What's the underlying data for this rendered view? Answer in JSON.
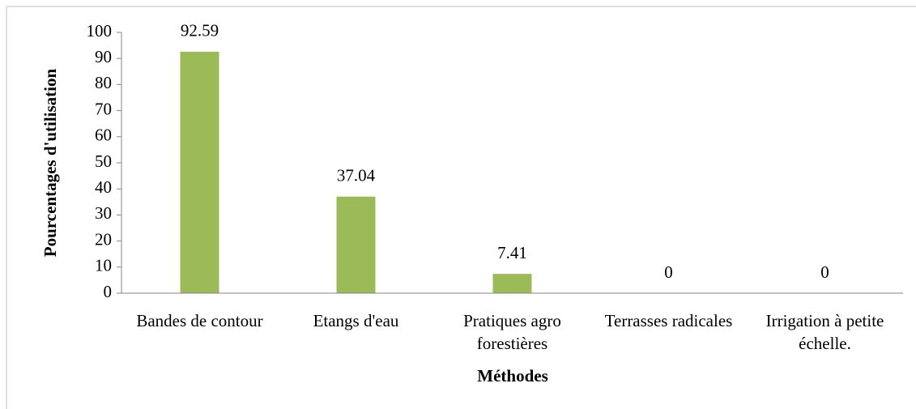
{
  "chart_data": {
    "type": "bar",
    "categories": [
      "Bandes de contour",
      "Etangs d'eau",
      "Pratiques agro forestières",
      "Terrasses radicales",
      "Irrigation à petite échelle."
    ],
    "values": [
      92.59,
      37.04,
      7.41,
      0,
      0
    ],
    "color": "#9bbb59",
    "xlabel": "Méthodes",
    "ylabel": "Pourcentages d'utilisation",
    "ylim": [
      0,
      100
    ],
    "yticks": [
      0,
      10,
      20,
      30,
      40,
      50,
      60,
      70,
      80,
      90,
      100
    ],
    "grid": false
  }
}
